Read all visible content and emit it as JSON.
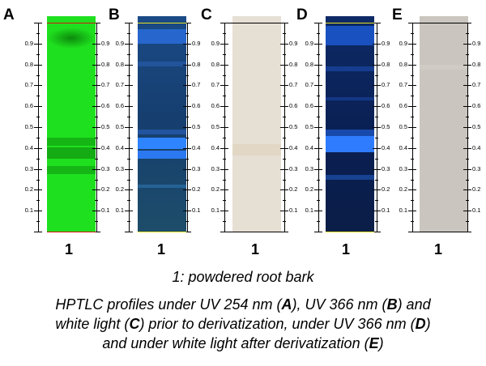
{
  "panels": [
    {
      "letter": "A",
      "lane": "1"
    },
    {
      "letter": "B",
      "lane": "1"
    },
    {
      "letter": "C",
      "lane": "1"
    },
    {
      "letter": "D",
      "lane": "1"
    },
    {
      "letter": "E",
      "lane": "1"
    }
  ],
  "rf_ticks": [
    "0.1",
    "0.2",
    "0.3",
    "0.4",
    "0.5",
    "0.6",
    "0.7",
    "0.8",
    "0.9"
  ],
  "caption": {
    "legend": "1: powdered root bark",
    "line1_a": "HPTLC profiles under UV 254 nm (",
    "line1_b": "A",
    "line1_c": "), UV 366 nm (",
    "line1_d": "B",
    "line1_e": ") and",
    "line2_a": "white light (",
    "line2_b": "C",
    "line2_c": ") prior to derivatization, under UV 366 nm (",
    "line2_d": "D",
    "line2_e": ")",
    "line3_a": "and under white light after derivatization (",
    "line3_b": "E",
    "line3_c": ")"
  },
  "colors": {
    "A": "#1ee51e",
    "B": "#163a6e",
    "C": "#e4dcd0",
    "D": "#0a1f52",
    "E": "#c8c4bc",
    "uv_band": "#1e78ff",
    "front_red": "#d01818",
    "front_yellow": "#e8e020"
  }
}
